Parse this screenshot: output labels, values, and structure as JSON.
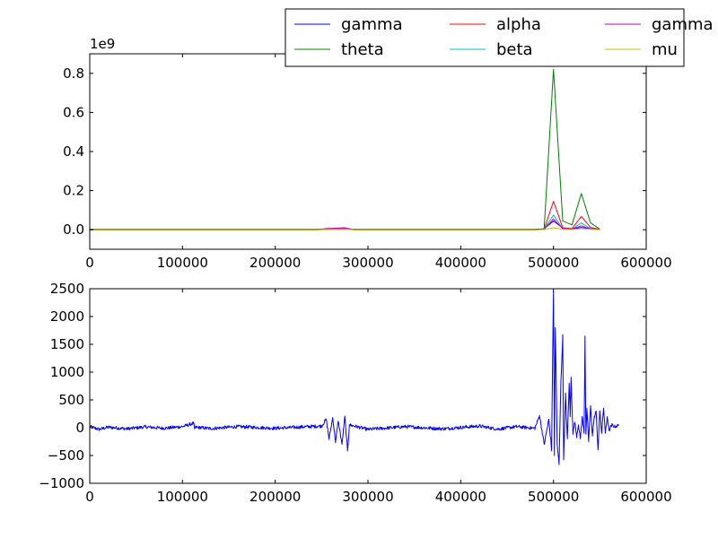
{
  "chart_data": [
    {
      "type": "line",
      "title": "",
      "xlabel": "",
      "ylabel": "",
      "y_offset_label": "1e9",
      "xlim": [
        0,
        600000
      ],
      "ylim": [
        -0.1,
        0.9
      ],
      "x_ticks": [
        0,
        100000,
        200000,
        300000,
        400000,
        500000,
        600000
      ],
      "x_tick_labels": [
        "0",
        "100000",
        "200000",
        "300000",
        "400000",
        "500000",
        "600000"
      ],
      "y_ticks": [
        0.0,
        0.2,
        0.4,
        0.6,
        0.8
      ],
      "y_tick_labels": [
        "0.0",
        "0.2",
        "0.4",
        "0.6",
        "0.8"
      ],
      "grid": false,
      "legend": {
        "placement": "top-right, outside above axes",
        "columns": 3,
        "entries": [
          "gamma",
          "theta",
          "alpha",
          "beta",
          "gamma",
          "mu"
        ]
      },
      "x": [
        0,
        245000,
        255000,
        265000,
        275000,
        285000,
        480000,
        490000,
        500000,
        510000,
        520000,
        530000,
        540000,
        550000
      ],
      "series": [
        {
          "name": "gamma",
          "color": "#0000ff",
          "values": [
            0.002,
            0.002,
            0.002,
            0.002,
            0.002,
            0.002,
            0.002,
            0.004,
            0.045,
            0.008,
            0.004,
            0.012,
            0.006,
            0.002
          ]
        },
        {
          "name": "theta",
          "color": "#008000",
          "values": [
            0.0,
            0.0,
            0.002,
            0.004,
            0.006,
            0.0,
            0.0,
            0.005,
            0.82,
            0.045,
            0.025,
            0.185,
            0.035,
            0.003
          ]
        },
        {
          "name": "alpha",
          "color": "#ff0000",
          "values": [
            0.0,
            0.0,
            0.004,
            0.006,
            0.008,
            0.0,
            0.0,
            0.003,
            0.145,
            0.01,
            0.006,
            0.068,
            0.012,
            0.002
          ]
        },
        {
          "name": "beta",
          "color": "#00bfbf",
          "values": [
            0.0,
            0.0,
            0.002,
            0.003,
            0.004,
            0.0,
            0.0,
            0.002,
            0.075,
            0.006,
            0.003,
            0.035,
            0.006,
            0.001
          ]
        },
        {
          "name": "gamma",
          "color": "#bf00bf",
          "values": [
            0.0,
            0.0,
            0.006,
            0.008,
            0.01,
            0.0,
            0.0,
            0.002,
            0.055,
            0.005,
            0.003,
            0.02,
            0.004,
            0.001
          ]
        },
        {
          "name": "mu",
          "color": "#bfbf00",
          "values": [
            0.0,
            0.0,
            0.001,
            0.001,
            0.002,
            0.0,
            0.0,
            0.001,
            0.01,
            0.002,
            0.001,
            0.005,
            0.002,
            0.0
          ]
        }
      ]
    },
    {
      "type": "line",
      "title": "",
      "xlabel": "",
      "ylabel": "",
      "xlim": [
        0,
        600000
      ],
      "ylim": [
        -1000,
        2500
      ],
      "x_ticks": [
        0,
        100000,
        200000,
        300000,
        400000,
        500000,
        600000
      ],
      "x_tick_labels": [
        "0",
        "100000",
        "200000",
        "300000",
        "400000",
        "500000",
        "600000"
      ],
      "y_ticks": [
        -1000,
        -500,
        0,
        500,
        1000,
        1500,
        2000,
        2500
      ],
      "y_tick_labels": [
        "−1000",
        "−500",
        "0",
        "500",
        "1000",
        "1500",
        "2000",
        "2500"
      ],
      "grid": false,
      "noise_amplitude": 30,
      "series": [
        {
          "name": "",
          "color": "#0000ff",
          "x": [
            0,
            10000,
            20000,
            40000,
            60000,
            80000,
            100000,
            112000,
            113000,
            114000,
            130000,
            160000,
            200000,
            230000,
            250000,
            255000,
            258000,
            262000,
            265000,
            268000,
            272000,
            275000,
            278000,
            280000,
            300000,
            340000,
            380000,
            420000,
            440000,
            460000,
            480000,
            485000,
            490000,
            495000,
            498000,
            500000,
            501000,
            502000,
            504000,
            506000,
            508000,
            510000,
            511000,
            513000,
            515000,
            517000,
            518000,
            519000,
            521000,
            523000,
            525000,
            527000,
            529000,
            531000,
            533000,
            534000,
            535000,
            536000,
            538000,
            540000,
            542000,
            544000,
            546000,
            548000,
            550000,
            552000,
            554000,
            556000,
            558000,
            560000,
            563000,
            566000,
            570000
          ],
          "values": [
            20,
            -30,
            10,
            -20,
            15,
            -10,
            20,
            80,
            -20,
            10,
            -15,
            20,
            -10,
            15,
            30,
            150,
            -200,
            180,
            -250,
            120,
            -300,
            200,
            -420,
            50,
            -30,
            20,
            -20,
            30,
            -25,
            20,
            -10,
            220,
            -300,
            150,
            -400,
            2450,
            -500,
            1800,
            -300,
            -650,
            800,
            1650,
            -550,
            600,
            -200,
            800,
            200,
            900,
            -100,
            100,
            -150,
            50,
            -200,
            200,
            -100,
            1650,
            -100,
            350,
            -250,
            400,
            -150,
            200,
            300,
            -400,
            300,
            -100,
            350,
            -100,
            200,
            -50,
            50,
            20,
            40
          ]
        }
      ]
    }
  ]
}
